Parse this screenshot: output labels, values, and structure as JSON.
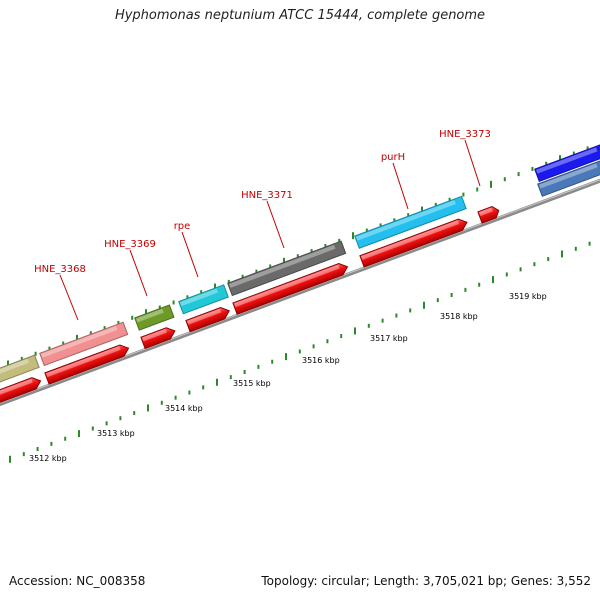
{
  "title": "Hyphomonas neptunium ATCC 15444, complete genome",
  "accession": "Accession: NC_008358",
  "summary": "Topology: circular; Length: 3,705,021 bp; Genes: 3,552",
  "colors": {
    "backbone": "#8a8a8a",
    "tick": "#2a8a2a",
    "label": "#c00000",
    "cds": "#ee1111"
  },
  "tick_labels": [
    "3512 kbp",
    "3513 kbp",
    "3514 kbp",
    "3515 kbp",
    "3516 kbp",
    "3517 kbp",
    "3518 kbp",
    "3519 kbp"
  ],
  "gene_labels": [
    "HNE_3368",
    "HNE_3369",
    "rpe",
    "HNE_3371",
    "purH",
    "HNE_3373"
  ],
  "top_genes": [
    {
      "color": "#c2bd7c"
    },
    {
      "color": "#f09090"
    },
    {
      "color": "#6e9a28"
    },
    {
      "color": "#22c8d8"
    },
    {
      "color": "#6a6a6a"
    },
    {
      "color": "#22bfef"
    },
    {
      "color": "#1a1aee"
    },
    {
      "color": "#4a78b8"
    }
  ]
}
